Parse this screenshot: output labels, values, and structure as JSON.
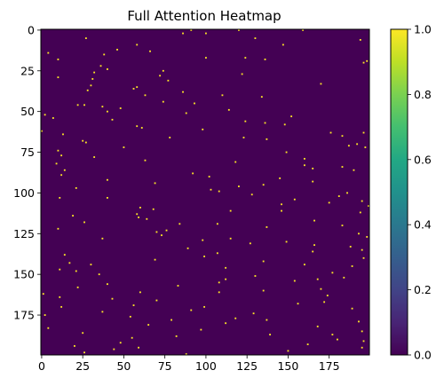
{
  "chart_data": {
    "type": "heatmap",
    "title": "Full Attention Heatmap",
    "xlabel": "",
    "ylabel": "",
    "rows": 200,
    "cols": 200,
    "xlim": [
      0,
      199
    ],
    "ylim": [
      199,
      0
    ],
    "x_ticks": [
      0,
      25,
      50,
      75,
      100,
      125,
      150,
      175
    ],
    "y_ticks": [
      0,
      25,
      50,
      75,
      100,
      125,
      150,
      175
    ],
    "colorbar": {
      "min": 0,
      "max": 1,
      "ticks": [
        "0.0",
        "0.2",
        "0.4",
        "0.6",
        "0.8",
        "1.0"
      ],
      "colormap": "viridis"
    },
    "background_value": 0.0,
    "bright_cells": [
      [
        0,
        91
      ],
      [
        0,
        120
      ],
      [
        0,
        159
      ],
      [
        2,
        86
      ],
      [
        2,
        100
      ],
      [
        5,
        27
      ],
      [
        5,
        130
      ],
      [
        6,
        194
      ],
      [
        9,
        58
      ],
      [
        9,
        147
      ],
      [
        12,
        46
      ],
      [
        13,
        66
      ],
      [
        14,
        4
      ],
      [
        15,
        38
      ],
      [
        17,
        124
      ],
      [
        17,
        100
      ],
      [
        18,
        136
      ],
      [
        19,
        198
      ],
      [
        20,
        196
      ],
      [
        22,
        36
      ],
      [
        24,
        40
      ],
      [
        25,
        74
      ],
      [
        26,
        32
      ],
      [
        27,
        122
      ],
      [
        28,
        72
      ],
      [
        29,
        10
      ],
      [
        30,
        31
      ],
      [
        31,
        77
      ],
      [
        34,
        30
      ],
      [
        35,
        58
      ],
      [
        36,
        56
      ],
      [
        37,
        28
      ],
      [
        38,
        86
      ],
      [
        40,
        63
      ],
      [
        40,
        110
      ],
      [
        41,
        134
      ],
      [
        44,
        74
      ],
      [
        45,
        93
      ],
      [
        46,
        22
      ],
      [
        46,
        26
      ],
      [
        47,
        37
      ],
      [
        48,
        48
      ],
      [
        50,
        40
      ],
      [
        51,
        88
      ],
      [
        52,
        2
      ],
      [
        53,
        152
      ],
      [
        54,
        7
      ],
      [
        55,
        43
      ],
      [
        56,
        124
      ],
      [
        58,
        148
      ],
      [
        59,
        58
      ],
      [
        60,
        61
      ],
      [
        61,
        98
      ],
      [
        62,
        0
      ],
      [
        63,
        176
      ],
      [
        63,
        196
      ],
      [
        64,
        13
      ],
      [
        66,
        123
      ],
      [
        66,
        78
      ],
      [
        67,
        137
      ],
      [
        68,
        25
      ],
      [
        69,
        27
      ],
      [
        70,
        192
      ],
      [
        71,
        187
      ],
      [
        72,
        197
      ],
      [
        74,
        10
      ],
      [
        75,
        149
      ],
      [
        77,
        12
      ],
      [
        78,
        32
      ],
      [
        79,
        160
      ],
      [
        80,
        63
      ],
      [
        81,
        118
      ],
      [
        82,
        9
      ],
      [
        83,
        160
      ],
      [
        84,
        183
      ],
      [
        85,
        165
      ],
      [
        86,
        190
      ],
      [
        88,
        92
      ],
      [
        89,
        12
      ],
      [
        90,
        102
      ],
      [
        91,
        145
      ],
      [
        92,
        40
      ],
      [
        93,
        165
      ],
      [
        95,
        135
      ],
      [
        96,
        120
      ],
      [
        97,
        21
      ],
      [
        98,
        103
      ],
      [
        99,
        108
      ],
      [
        100,
        186
      ],
      [
        101,
        128
      ],
      [
        102,
        181
      ],
      [
        103,
        40
      ],
      [
        104,
        154
      ],
      [
        105,
        195
      ],
      [
        106,
        175
      ],
      [
        107,
        146
      ],
      [
        108,
        199
      ],
      [
        109,
        60
      ],
      [
        110,
        68
      ],
      [
        111,
        115
      ],
      [
        112,
        194
      ],
      [
        113,
        58
      ],
      [
        114,
        19
      ],
      [
        115,
        59
      ],
      [
        116,
        64
      ],
      [
        117,
        166
      ],
      [
        118,
        26
      ],
      [
        119,
        107
      ],
      [
        120,
        183
      ],
      [
        121,
        137
      ],
      [
        122,
        10
      ],
      [
        123,
        76
      ],
      [
        124,
        70
      ],
      [
        125,
        193
      ],
      [
        126,
        73
      ],
      [
        127,
        198
      ],
      [
        128,
        115
      ],
      [
        129,
        98
      ],
      [
        130,
        149
      ],
      [
        131,
        127
      ],
      [
        132,
        166
      ],
      [
        133,
        188
      ],
      [
        134,
        89
      ],
      [
        135,
        195
      ],
      [
        137,
        107
      ],
      [
        138,
        14
      ],
      [
        139,
        99
      ],
      [
        140,
        196
      ],
      [
        141,
        69
      ],
      [
        142,
        135
      ],
      [
        143,
        17
      ],
      [
        144,
        160
      ],
      [
        145,
        189
      ],
      [
        146,
        112
      ],
      [
        147,
        11
      ],
      [
        148,
        21
      ],
      [
        149,
        177
      ],
      [
        150,
        35
      ],
      [
        151,
        130
      ],
      [
        152,
        184
      ],
      [
        153,
        168
      ],
      [
        154,
        154
      ],
      [
        155,
        108
      ],
      [
        156,
        40
      ],
      [
        157,
        83
      ],
      [
        158,
        22
      ],
      [
        159,
        170
      ],
      [
        160,
        135
      ],
      [
        161,
        108
      ],
      [
        162,
        1
      ],
      [
        163,
        174
      ],
      [
        164,
        11
      ],
      [
        165,
        43
      ],
      [
        166,
        70
      ],
      [
        167,
        172
      ],
      [
        168,
        156
      ],
      [
        169,
        56
      ],
      [
        170,
        12
      ],
      [
        171,
        189
      ],
      [
        172,
        91
      ],
      [
        173,
        37
      ],
      [
        174,
        129
      ],
      [
        175,
        2
      ],
      [
        176,
        54
      ],
      [
        177,
        118
      ],
      [
        178,
        79
      ],
      [
        179,
        193
      ],
      [
        180,
        112
      ],
      [
        181,
        65
      ],
      [
        182,
        168
      ],
      [
        183,
        4
      ],
      [
        184,
        97
      ],
      [
        185,
        195
      ],
      [
        186,
        25
      ],
      [
        187,
        139
      ],
      [
        188,
        82
      ],
      [
        189,
        55
      ],
      [
        190,
        180
      ],
      [
        191,
        196
      ],
      [
        192,
        48
      ],
      [
        193,
        162
      ],
      [
        194,
        20
      ],
      [
        195,
        195
      ],
      [
        196,
        44
      ],
      [
        197,
        150
      ],
      [
        198,
        26
      ],
      [
        199,
        88
      ],
      [
        18,
        10
      ],
      [
        33,
        170
      ],
      [
        49,
        114
      ],
      [
        57,
        136
      ],
      [
        65,
        183
      ],
      [
        72,
        50
      ],
      [
        86,
        14
      ],
      [
        94,
        69
      ],
      [
        103,
        11
      ],
      [
        111,
        146
      ],
      [
        119,
        84
      ],
      [
        128,
        37
      ],
      [
        136,
        165
      ],
      [
        144,
        30
      ],
      [
        153,
        112
      ],
      [
        161,
        60
      ],
      [
        170,
        99
      ],
      [
        178,
        137
      ],
      [
        187,
        177
      ],
      [
        195,
        59
      ]
    ]
  }
}
